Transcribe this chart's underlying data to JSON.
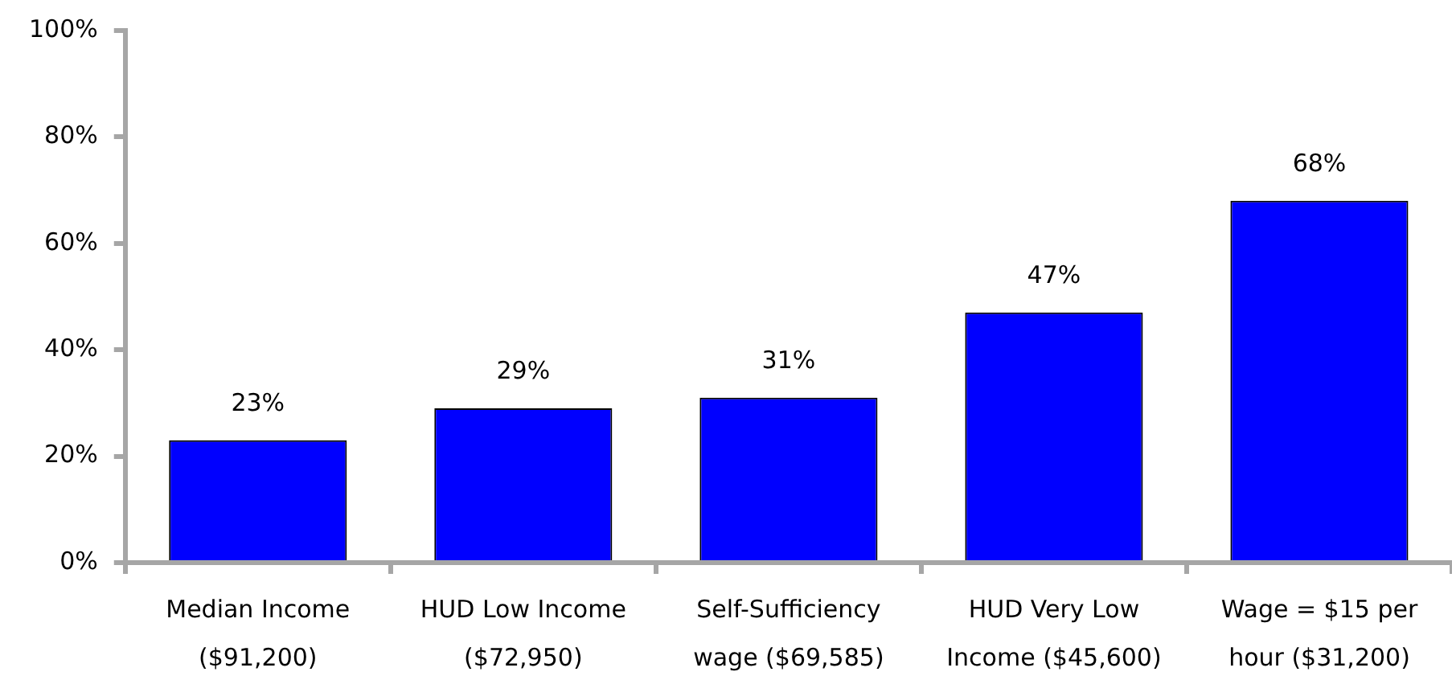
{
  "chart_data": {
    "type": "bar",
    "categories": [
      "Median Income ($91,200)",
      "HUD Low Income ($72,950)",
      "Self-Sufficiency wage ($69,585)",
      "HUD Very Low Income ($45,600)",
      "Wage = $15 per hour ($31,200)"
    ],
    "values": [
      23,
      29,
      31,
      47,
      68
    ],
    "color": "#0000ff",
    "value_labels": [
      "23%",
      "29%",
      "31%",
      "47%",
      "68%"
    ],
    "ylim": [
      0,
      100
    ],
    "yticks": [
      {
        "value": 0,
        "label": "0%"
      },
      {
        "value": 20,
        "label": "20%"
      },
      {
        "value": 40,
        "label": "40%"
      },
      {
        "value": 60,
        "label": "60%"
      },
      {
        "value": 80,
        "label": "80%"
      },
      {
        "value": 100,
        "label": "100%"
      }
    ],
    "grid": false,
    "legend": false
  }
}
